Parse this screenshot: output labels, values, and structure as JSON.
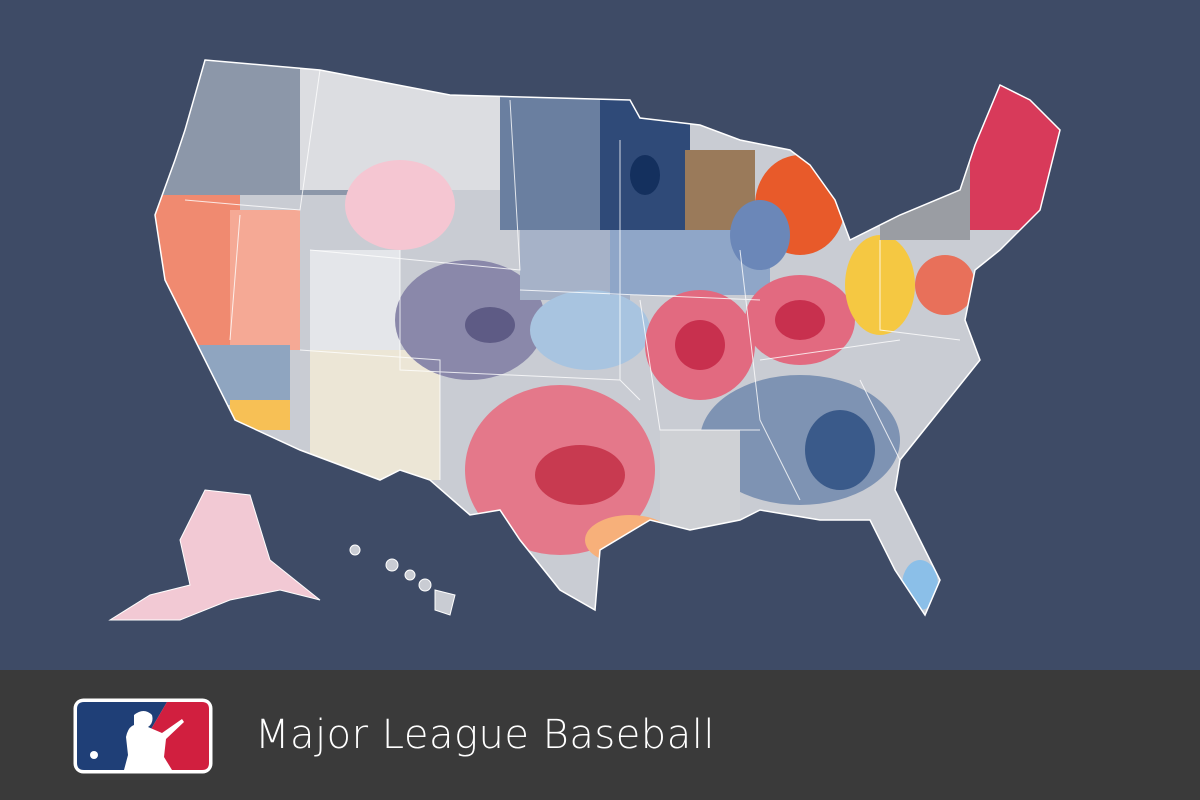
{
  "footer": {
    "title": "Major League Baseball"
  }
}
